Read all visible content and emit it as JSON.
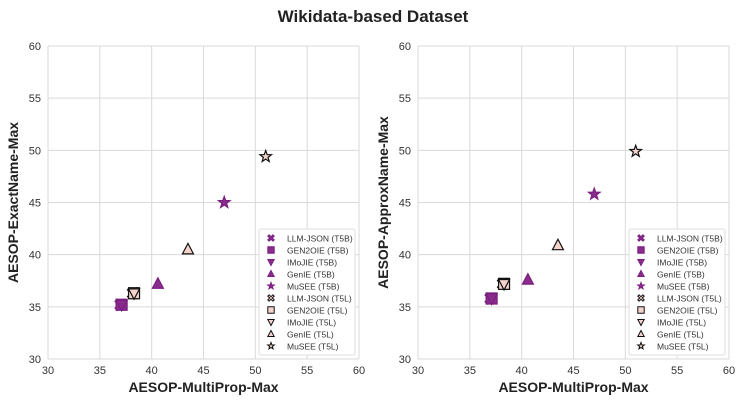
{
  "title": "Wikidata-based Dataset",
  "colors": {
    "t5b_fill": "#8a2c8c",
    "t5b_edge": "#7a1f80",
    "t5l_fill": "#f3d3cb",
    "t5l_edge": "#111111",
    "grid": "#d9d9d9"
  },
  "legend_entries": [
    {
      "label": "LLM-JSON (T5B)",
      "marker": "x-filled",
      "group": "t5b"
    },
    {
      "label": "GEN2OIE (T5B)",
      "marker": "square",
      "group": "t5b"
    },
    {
      "label": "IMoJIE (T5B)",
      "marker": "triangle-down",
      "group": "t5b"
    },
    {
      "label": "GenIE (T5B)",
      "marker": "triangle-up",
      "group": "t5b"
    },
    {
      "label": "MuSEE (T5B)",
      "marker": "star",
      "group": "t5b"
    },
    {
      "label": "LLM-JSON (T5L)",
      "marker": "x-filled",
      "group": "t5l"
    },
    {
      "label": "GEN2OIE (T5L)",
      "marker": "square",
      "group": "t5l"
    },
    {
      "label": "IMoJIE (T5L)",
      "marker": "triangle-down",
      "group": "t5l"
    },
    {
      "label": "GenIE (T5L)",
      "marker": "triangle-up",
      "group": "t5l"
    },
    {
      "label": "MuSEE (T5L)",
      "marker": "star",
      "group": "t5l"
    }
  ],
  "chart_data": [
    {
      "type": "scatter",
      "xlabel": "AESOP-MultiProp-Max",
      "ylabel": "AESOP-ExactName-Max",
      "xlim": [
        30,
        60
      ],
      "ylim": [
        30,
        60
      ],
      "xticks": [
        30,
        35,
        40,
        45,
        50,
        55,
        60
      ],
      "yticks": [
        30,
        35,
        40,
        45,
        50,
        55,
        60
      ],
      "grid": true,
      "legend": "bottom-right",
      "points": [
        {
          "series": "LLM-JSON (T5B)",
          "x": 37.0,
          "y": 35.2
        },
        {
          "series": "GEN2OIE (T5B)",
          "x": 37.1,
          "y": 35.2
        },
        {
          "series": "IMoJIE (T5B)",
          "x": 37.1,
          "y": 35.2
        },
        {
          "series": "GenIE (T5B)",
          "x": 40.6,
          "y": 37.2
        },
        {
          "series": "MuSEE (T5B)",
          "x": 47.0,
          "y": 45.0
        },
        {
          "series": "LLM-JSON (T5L)",
          "x": 38.2,
          "y": 36.3
        },
        {
          "series": "GEN2OIE (T5L)",
          "x": 38.3,
          "y": 36.3
        },
        {
          "series": "IMoJIE (T5L)",
          "x": 38.3,
          "y": 36.3
        },
        {
          "series": "GenIE (T5L)",
          "x": 43.5,
          "y": 40.5
        },
        {
          "series": "MuSEE (T5L)",
          "x": 51.0,
          "y": 49.4
        }
      ]
    },
    {
      "type": "scatter",
      "xlabel": "AESOP-MultiProp-Max",
      "ylabel": "AESOP-ApproxName-Max",
      "xlim": [
        30,
        60
      ],
      "ylim": [
        30,
        60
      ],
      "xticks": [
        30,
        35,
        40,
        45,
        50,
        55,
        60
      ],
      "yticks": [
        30,
        35,
        40,
        45,
        50,
        55,
        60
      ],
      "grid": true,
      "legend": "bottom-right",
      "points": [
        {
          "series": "LLM-JSON (T5B)",
          "x": 37.0,
          "y": 35.8
        },
        {
          "series": "GEN2OIE (T5B)",
          "x": 37.1,
          "y": 35.8
        },
        {
          "series": "IMoJIE (T5B)",
          "x": 37.1,
          "y": 35.8
        },
        {
          "series": "GenIE (T5B)",
          "x": 40.6,
          "y": 37.6
        },
        {
          "series": "MuSEE (T5B)",
          "x": 47.0,
          "y": 45.8
        },
        {
          "series": "LLM-JSON (T5L)",
          "x": 38.2,
          "y": 37.2
        },
        {
          "series": "GEN2OIE (T5L)",
          "x": 38.3,
          "y": 37.2
        },
        {
          "series": "IMoJIE (T5L)",
          "x": 38.3,
          "y": 37.2
        },
        {
          "series": "GenIE (T5L)",
          "x": 43.5,
          "y": 40.9
        },
        {
          "series": "MuSEE (T5L)",
          "x": 51.0,
          "y": 49.9
        }
      ]
    }
  ]
}
